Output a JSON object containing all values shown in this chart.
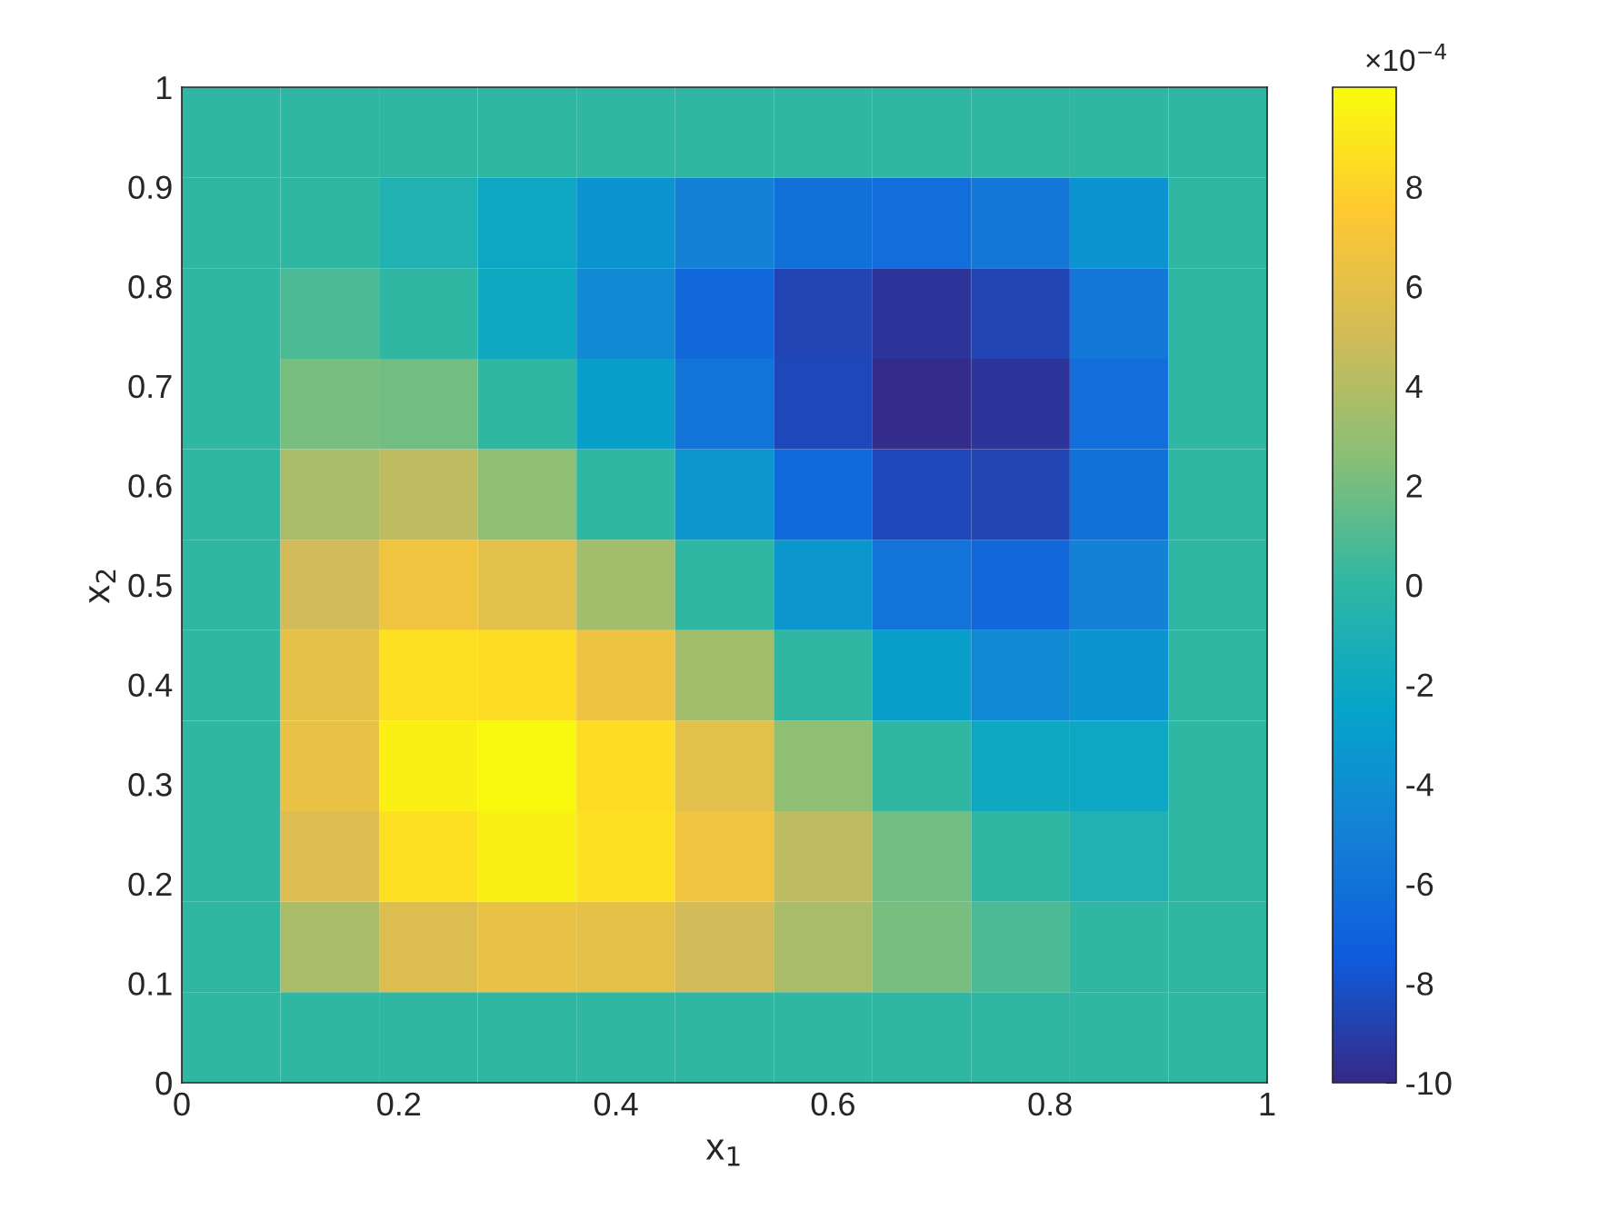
{
  "chart_data": {
    "type": "heatmap",
    "xlabel": "x$_{1}$",
    "ylabel": "x$_{2}$",
    "xlim": [
      0,
      1
    ],
    "ylim": [
      0,
      1
    ],
    "xticks": [
      0,
      0.2,
      0.4,
      0.6,
      0.8,
      1
    ],
    "yticks": [
      0,
      0.1,
      0.2,
      0.3,
      0.4,
      0.5,
      0.6,
      0.7,
      0.8,
      0.9,
      1
    ],
    "clim": [
      -10,
      10
    ],
    "cticks": [
      -10,
      -8,
      -6,
      -4,
      -2,
      0,
      2,
      4,
      6,
      8
    ],
    "annotations": [
      "×10$^{−4}$"
    ],
    "colors": [
      "#352a87",
      "#0f5cdd",
      "#1481d6",
      "#06a4ca",
      "#2eb7a4",
      "#87bf77",
      "#d1bb59",
      "#fec832",
      "#f9fb0e"
    ],
    "cells": [
      [
        0,
        0,
        0,
        0,
        0,
        0,
        0,
        0,
        0,
        0,
        0
      ],
      [
        0,
        0,
        -0.8,
        -2.1,
        -3.6,
        -5.0,
        -6.1,
        -6.3,
        -5.6,
        -3.6,
        0
      ],
      [
        0,
        0.8,
        0,
        -1.9,
        -4.3,
        -6.7,
        -8.6,
        -9.4,
        -8.6,
        -5.6,
        0
      ],
      [
        0,
        2.1,
        1.9,
        0,
        -2.8,
        -5.9,
        -8.5,
        -9.9,
        -9.4,
        -6.3,
        0
      ],
      [
        0,
        3.6,
        4.3,
        2.8,
        0,
        -3.4,
        -6.5,
        -8.5,
        -8.6,
        -6.1,
        0
      ],
      [
        0,
        5.0,
        6.7,
        5.9,
        3.4,
        0,
        -3.4,
        -5.9,
        -6.7,
        -5.0,
        0
      ],
      [
        0,
        6.1,
        8.6,
        8.5,
        6.5,
        3.4,
        0,
        -2.8,
        -4.3,
        -3.6,
        0
      ],
      [
        0,
        6.3,
        9.4,
        9.9,
        8.5,
        5.9,
        2.8,
        0,
        -1.9,
        -2.1,
        0
      ],
      [
        0,
        5.6,
        8.6,
        9.4,
        8.6,
        6.7,
        4.3,
        1.9,
        0,
        -0.8,
        0
      ],
      [
        0,
        3.6,
        5.6,
        6.3,
        6.1,
        5.0,
        3.6,
        2.1,
        0.8,
        0,
        0
      ],
      [
        0,
        0,
        0,
        0,
        0,
        0,
        0,
        0,
        0,
        0,
        0
      ]
    ]
  }
}
